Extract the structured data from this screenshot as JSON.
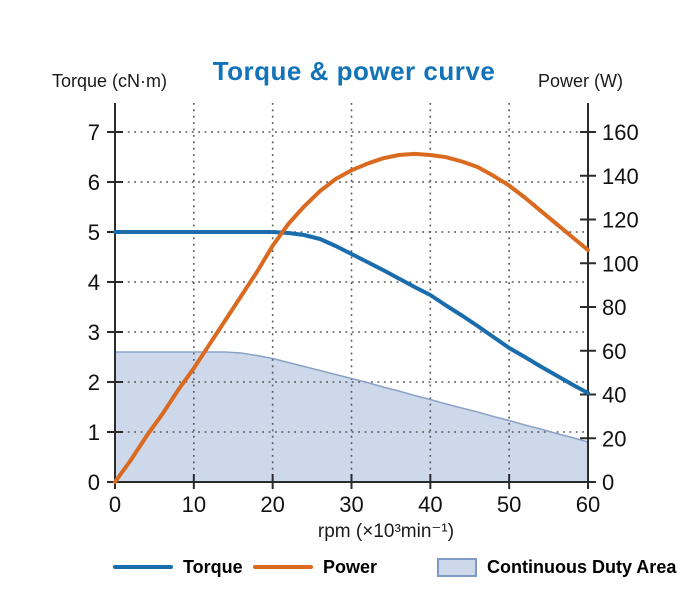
{
  "title": "Torque & power curve",
  "title_color": "#1273b8",
  "legend": {
    "items": [
      {
        "label": "Torque",
        "swatch": "line",
        "color": "#1a6dad"
      },
      {
        "label": "Power",
        "swatch": "line",
        "color": "#d96a1f"
      },
      {
        "label": "Continuous Duty Area",
        "swatch": "area",
        "fill": "#cdd8eb",
        "border": "#7f9ac4"
      }
    ]
  },
  "colors": {
    "torque_line": "#1a6dad",
    "power_line": "#d96a1f",
    "duty_fill": "#cdd8eb",
    "duty_edge": "#8ba3c7",
    "axis": "#2b2b2b",
    "grid": "#555555",
    "tick_text": "#111111",
    "title": "#1273b8"
  },
  "chart_data": {
    "type": "line",
    "title": "Torque & power curve",
    "xlabel": "rpm (×10³min⁻¹)",
    "x_range": [
      0,
      60
    ],
    "x_ticks": [
      0,
      10,
      20,
      30,
      40,
      50,
      60
    ],
    "grid": true,
    "legend_position": "bottom",
    "left_axis": {
      "label": "Torque (cN·m)",
      "range": [
        0,
        7
      ],
      "ticks": [
        0,
        1,
        2,
        3,
        4,
        5,
        6,
        7
      ]
    },
    "right_axis": {
      "label": "Power (W)",
      "range": [
        0,
        160
      ],
      "ticks": [
        0,
        20,
        40,
        60,
        80,
        100,
        120,
        140,
        160
      ]
    },
    "series": [
      {
        "name": "Continuous Duty Area",
        "type": "area",
        "axis": "left",
        "fill": "#cdd8eb",
        "edge": "#8ba3c7",
        "x": [
          0,
          5,
          10,
          14,
          16,
          18,
          20,
          22,
          24,
          26,
          28,
          30,
          32,
          34,
          36,
          38,
          40,
          42,
          44,
          46,
          48,
          50,
          52,
          54,
          56,
          58,
          60
        ],
        "y": [
          2.6,
          2.6,
          2.6,
          2.6,
          2.58,
          2.53,
          2.47,
          2.39,
          2.31,
          2.23,
          2.15,
          2.07,
          1.99,
          1.9,
          1.82,
          1.73,
          1.65,
          1.56,
          1.48,
          1.4,
          1.31,
          1.23,
          1.14,
          1.06,
          0.97,
          0.89,
          0.8
        ]
      },
      {
        "name": "Torque",
        "type": "line",
        "axis": "left",
        "color": "#1a6dad",
        "x": [
          0,
          5,
          10,
          15,
          20,
          22,
          24,
          26,
          28,
          30,
          32,
          34,
          36,
          38,
          40,
          42,
          44,
          46,
          48,
          50,
          52,
          54,
          56,
          58,
          60
        ],
        "y": [
          5,
          5,
          5,
          5,
          5,
          4.98,
          4.94,
          4.86,
          4.72,
          4.56,
          4.4,
          4.24,
          4.07,
          3.9,
          3.74,
          3.53,
          3.33,
          3.12,
          2.9,
          2.68,
          2.5,
          2.31,
          2.13,
          1.95,
          1.78
        ]
      },
      {
        "name": "Power",
        "type": "line",
        "axis": "right",
        "color": "#d96a1f",
        "x": [
          0,
          2,
          4,
          6,
          8,
          10,
          12,
          14,
          16,
          18,
          20,
          22,
          24,
          26,
          28,
          30,
          32,
          34,
          36,
          38,
          40,
          42,
          44,
          46,
          48,
          50,
          52,
          54,
          56,
          58,
          60
        ],
        "y": [
          0,
          10,
          21,
          31,
          42,
          52,
          63,
          74,
          85,
          96,
          108,
          118,
          126,
          133,
          138.5,
          142.5,
          145.5,
          148,
          149.5,
          150,
          149.5,
          148.5,
          146.5,
          144,
          140,
          135.5,
          130,
          124,
          118,
          112,
          106
        ]
      }
    ]
  }
}
